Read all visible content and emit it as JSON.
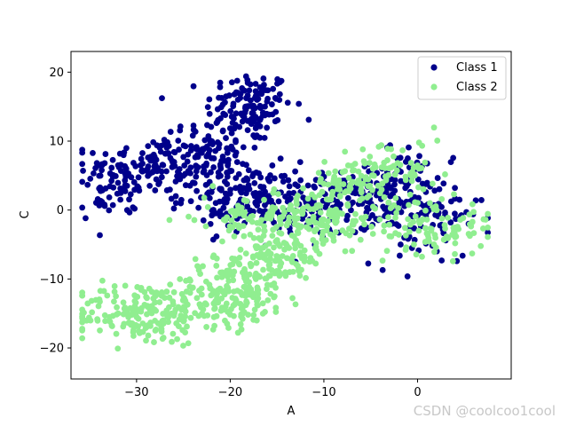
{
  "chart_data": {
    "type": "scatter",
    "title": "",
    "xlabel": "A",
    "ylabel": "C",
    "xlim": [
      -37,
      10
    ],
    "ylim": [
      -24.5,
      23
    ],
    "xticks": [
      -30,
      -20,
      -10,
      0
    ],
    "yticks": [
      -20,
      -10,
      0,
      10,
      20
    ],
    "xtick_labels": [
      "−30",
      "−20",
      "−10",
      "0"
    ],
    "ytick_labels": [
      "−20",
      "−10",
      "0",
      "10",
      "20"
    ],
    "grid": false,
    "legend_position": "top-right",
    "series": [
      {
        "name": "Class 1",
        "color": "#00008b",
        "clusters": [
          {
            "cx": -18,
            "cy": 15,
            "sx": 2.3,
            "sy": 2.6,
            "n": 130
          },
          {
            "cx": -28.5,
            "cy": 6,
            "sx": 3.5,
            "sy": 2.3,
            "n": 150
          },
          {
            "cx": -22,
            "cy": 9,
            "sx": 2.2,
            "sy": 1.8,
            "n": 70
          },
          {
            "cx": -33,
            "cy": 1.5,
            "sx": 1.5,
            "sy": 1.5,
            "n": 30
          },
          {
            "cx": -19,
            "cy": 2,
            "sx": 3,
            "sy": 2.5,
            "n": 130
          },
          {
            "cx": -11,
            "cy": 1,
            "sx": 4,
            "sy": 2.2,
            "n": 170
          },
          {
            "cx": -4,
            "cy": 2,
            "sx": 2.5,
            "sy": 2.5,
            "n": 70
          },
          {
            "cx": 1,
            "cy": -1,
            "sx": 3,
            "sy": 3.5,
            "n": 90
          },
          {
            "cx": -1,
            "cy": 7,
            "sx": 1.2,
            "sy": 2,
            "n": 20
          }
        ]
      },
      {
        "name": "Class 2",
        "color": "#90ee90",
        "clusters": [
          {
            "cx": -29.5,
            "cy": -15,
            "sx": 3.5,
            "sy": 2.3,
            "n": 180
          },
          {
            "cx": -20,
            "cy": -12,
            "sx": 3,
            "sy": 2.5,
            "n": 170
          },
          {
            "cx": -15,
            "cy": -7,
            "sx": 2.5,
            "sy": 2.5,
            "n": 130
          },
          {
            "cx": -11,
            "cy": -1,
            "sx": 3.5,
            "sy": 2.2,
            "n": 160
          },
          {
            "cx": -7,
            "cy": 4.5,
            "sx": 2,
            "sy": 1.8,
            "n": 60
          },
          {
            "cx": -2,
            "cy": 5,
            "sx": 2.5,
            "sy": 2.8,
            "n": 60
          },
          {
            "cx": 2,
            "cy": -2.5,
            "sx": 3,
            "sy": 2,
            "n": 90
          },
          {
            "cx": -19,
            "cy": -1,
            "sx": 2.5,
            "sy": 1.8,
            "n": 40
          }
        ]
      }
    ]
  },
  "watermark": "CSDN @coolcoo1cool"
}
